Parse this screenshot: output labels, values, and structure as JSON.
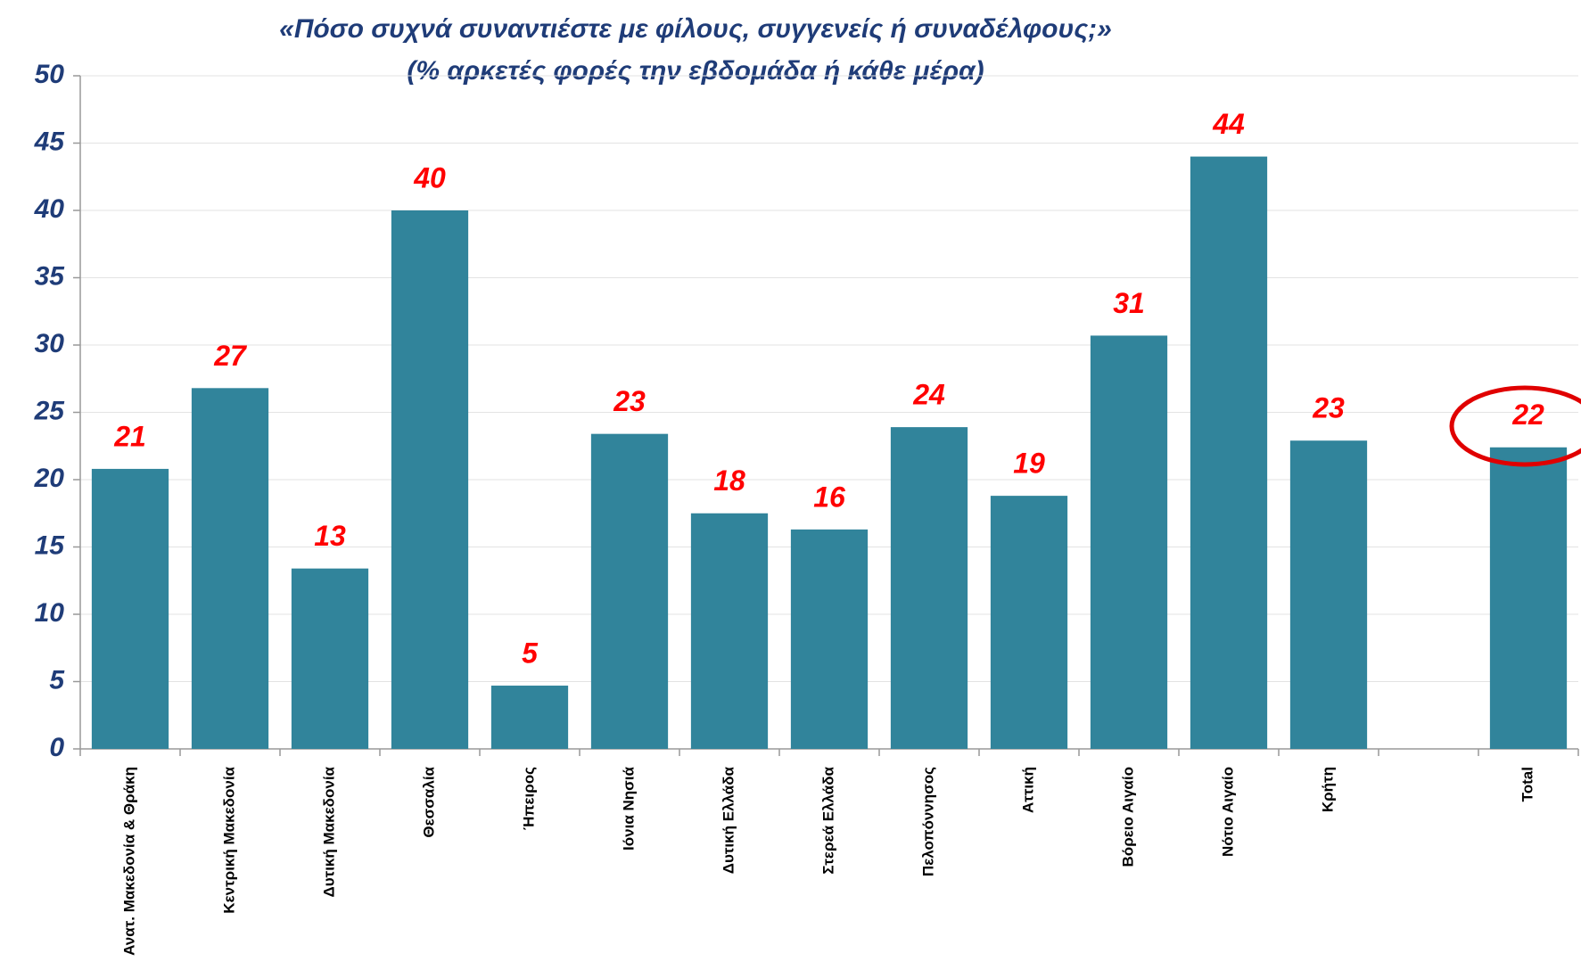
{
  "chart_data": {
    "type": "bar",
    "title": "«Πόσο συχνά συναντιέστε με φίλους, συγγενείς ή συναδέλφους;»",
    "subtitle": "(% αρκετές φορές την εβδομάδα ή κάθε μέρα)",
    "categories": [
      "Ανατ. Μακεδονία & Θράκη",
      "Κεντρική Μακεδονία",
      "Δυτική Μακεδονία",
      "Θεσσαλία",
      "Ήπειρος",
      "Ιόνια Νησιά",
      "Δυτική Ελλάδα",
      "Στερεά Ελλάδα",
      "Πελοπόννησος",
      "Αττική",
      "Βόρειο Αιγαίο",
      "Νότιο Αιγαίο",
      "Κρήτη",
      null,
      "Total"
    ],
    "values": [
      20.8,
      26.8,
      13.4,
      40,
      4.7,
      23.4,
      17.5,
      16.3,
      23.9,
      18.8,
      30.7,
      44,
      22.9,
      null,
      22.4
    ],
    "value_labels": [
      "21",
      "27",
      "13",
      "40",
      "5",
      "23",
      "18",
      "16",
      "24",
      "19",
      "31",
      "44",
      "23",
      null,
      "22"
    ],
    "color": "#31849b",
    "ylim": [
      0,
      50
    ],
    "yticks": [
      0,
      5,
      10,
      15,
      20,
      25,
      30,
      35,
      40,
      45,
      50
    ],
    "grid": true
  }
}
